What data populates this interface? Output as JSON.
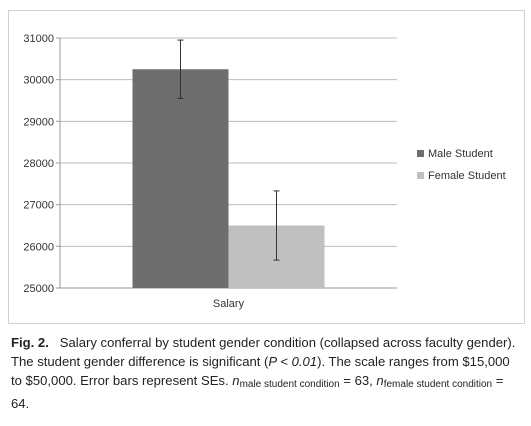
{
  "chart_data": {
    "type": "bar",
    "categories": [
      "Salary"
    ],
    "series": [
      {
        "name": "Male Student",
        "values": [
          30250
        ],
        "error": [
          700
        ],
        "color": "#6e6e6e"
      },
      {
        "name": "Female Student",
        "values": [
          26500
        ],
        "error": [
          830
        ],
        "color": "#c0c0c0"
      }
    ],
    "ylim": [
      25000,
      31000
    ],
    "yticks": [
      25000,
      26000,
      27000,
      28000,
      29000,
      30000,
      31000
    ],
    "grid": true,
    "legend_position": "right"
  },
  "caption": {
    "label": "Fig. 2.",
    "text": "Salary conferral by student gender condition (collapsed across faculty gender). The student gender difference is significant (",
    "stat": "P < 0.01",
    "text2": "). The scale ranges from $15,000 to $50,000. Error bars represent SEs. ",
    "n_symbol": "n",
    "n_male_sub": "male student condition",
    "n_male_val": "= 63,",
    "n_female_sub": "female student condition",
    "n_female_val": "= 64."
  }
}
